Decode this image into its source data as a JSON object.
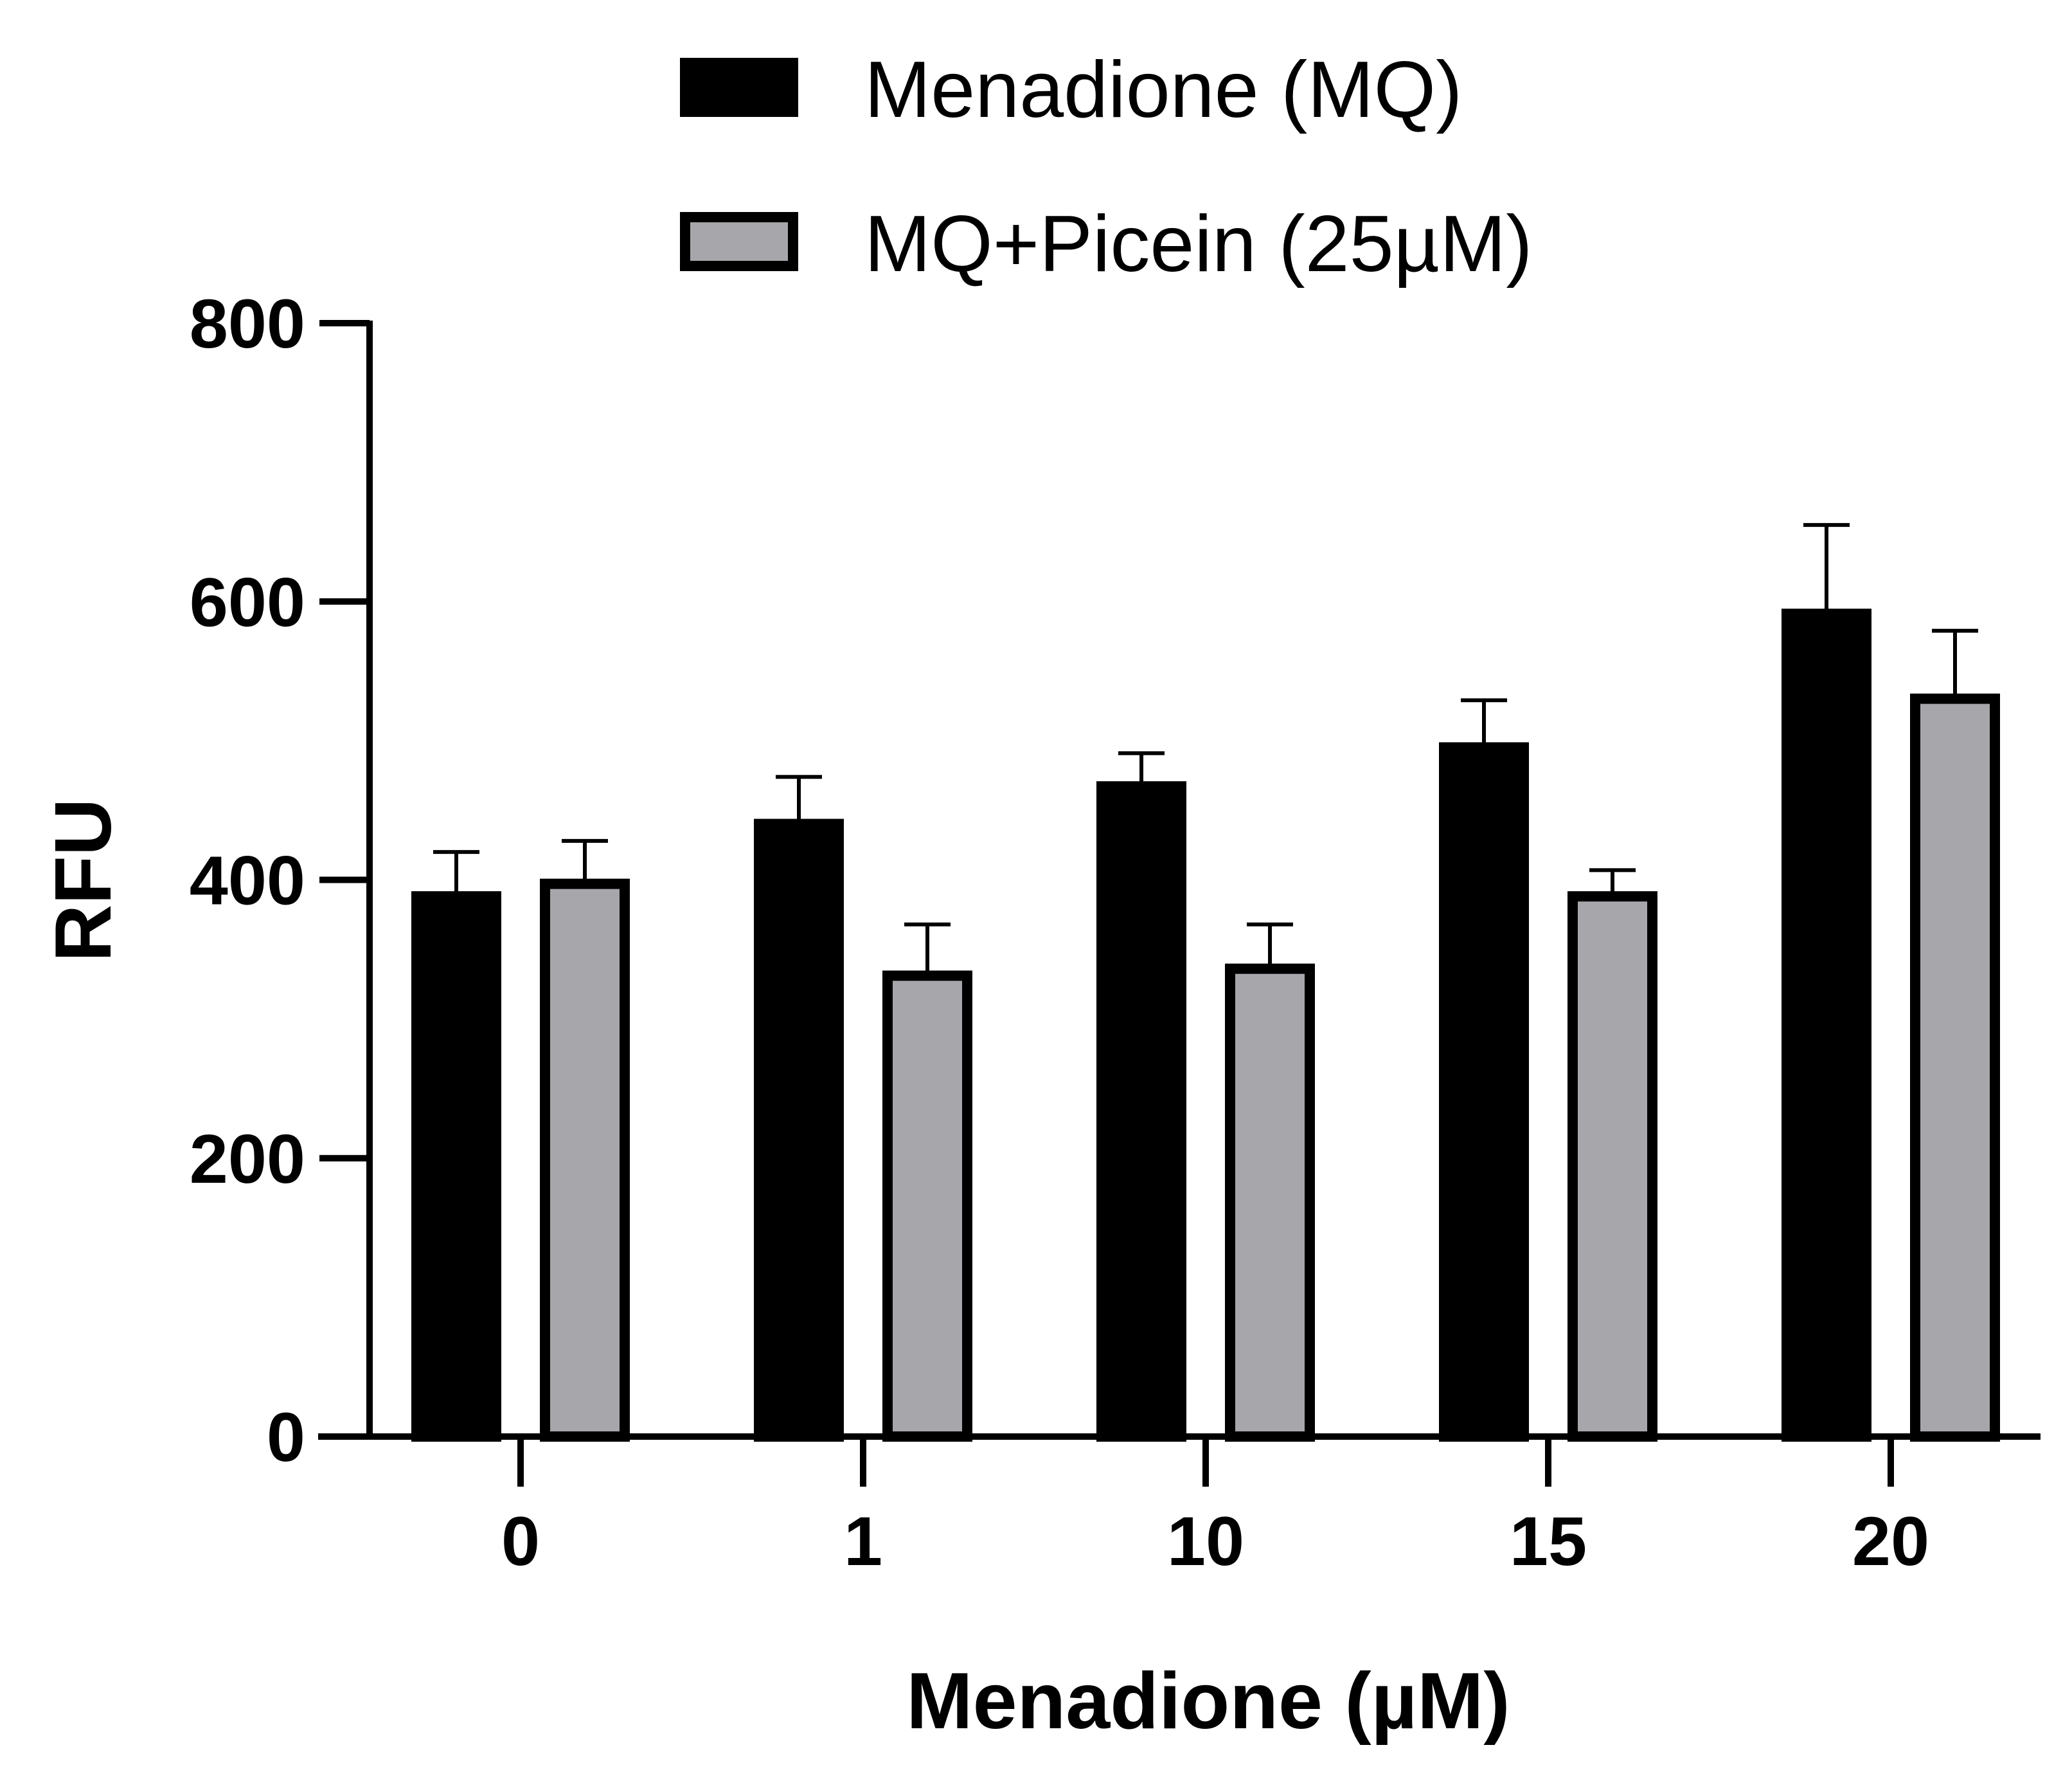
{
  "chart_data": {
    "type": "bar",
    "title": "",
    "xlabel": "Menadione (µM)",
    "ylabel": "RFU",
    "categories": [
      "0",
      "1",
      "10",
      "15",
      "20"
    ],
    "ylim": [
      0,
      800
    ],
    "yticks": [
      "0",
      "200",
      "400",
      "600",
      "800"
    ],
    "legend_position": "top-center",
    "grid": false,
    "series": [
      {
        "name": "Menadione (MQ)",
        "values": [
          390,
          442,
          469,
          497,
          593
        ],
        "errors": [
          30,
          32,
          22,
          32,
          62
        ],
        "fill": "#000000",
        "edge": "#000000"
      },
      {
        "name": "MQ+Picein (25µM)",
        "values": [
          399,
          333,
          338,
          390,
          532
        ],
        "errors": [
          29,
          35,
          30,
          17,
          47
        ],
        "fill": "#a7a6aa",
        "edge": "#000000"
      }
    ]
  }
}
